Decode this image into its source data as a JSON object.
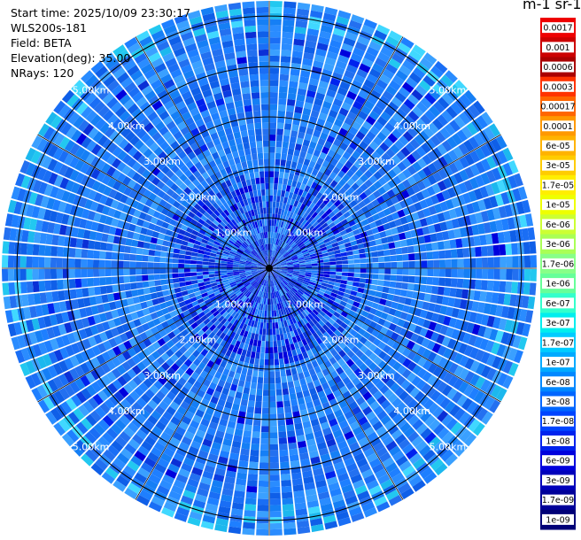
{
  "info": {
    "start_time": "Start time: 2025/10/09 23:30:17",
    "instrument": "WLS200s-181",
    "field": "Field: BETA",
    "elevation": "Elevation(deg): 35.00",
    "nrays": "NRays: 120"
  },
  "chart_data": {
    "type": "heatmap",
    "projection": "polar-ppi",
    "field": "BETA",
    "n_rays": 120,
    "max_range_km": 5.3,
    "range_ring_labels": [
      "1.00km",
      "2.00km",
      "3.00km",
      "4.00km",
      "5.00km"
    ],
    "colorbar": {
      "title": "m-1 sr-1",
      "tick_labels": [
        "0.0017",
        "0.001",
        "0.0006",
        "0.0003",
        "0.00017",
        "0.0001",
        "6e-05",
        "3e-05",
        "1.7e-05",
        "1e-05",
        "6e-06",
        "3e-06",
        "1.7e-06",
        "1e-06",
        "6e-07",
        "3e-07",
        "1.7e-07",
        "1e-07",
        "6e-08",
        "3e-08",
        "1.7e-08",
        "1e-08",
        "6e-09",
        "3e-09",
        "1.7e-09",
        "1e-09"
      ],
      "colors": [
        "#ee0000",
        "#cc0000",
        "#aa0000",
        "#ff3300",
        "#ff6600",
        "#ff9900",
        "#ffb300",
        "#ffcc00",
        "#ffee00",
        "#eeff00",
        "#ccff33",
        "#aaff55",
        "#88ff88",
        "#66ff99",
        "#33ffcc",
        "#00eeee",
        "#00ccff",
        "#00aaff",
        "#0088ff",
        "#0066ff",
        "#0044ff",
        "#0022ee",
        "#0000dd",
        "#0000bb",
        "#000099",
        "#000077"
      ]
    },
    "dominant_value_range": [
      "1e-08",
      "1.7e-07"
    ],
    "near_field_values": [
      "1e-09",
      "1.7e-08"
    ]
  }
}
